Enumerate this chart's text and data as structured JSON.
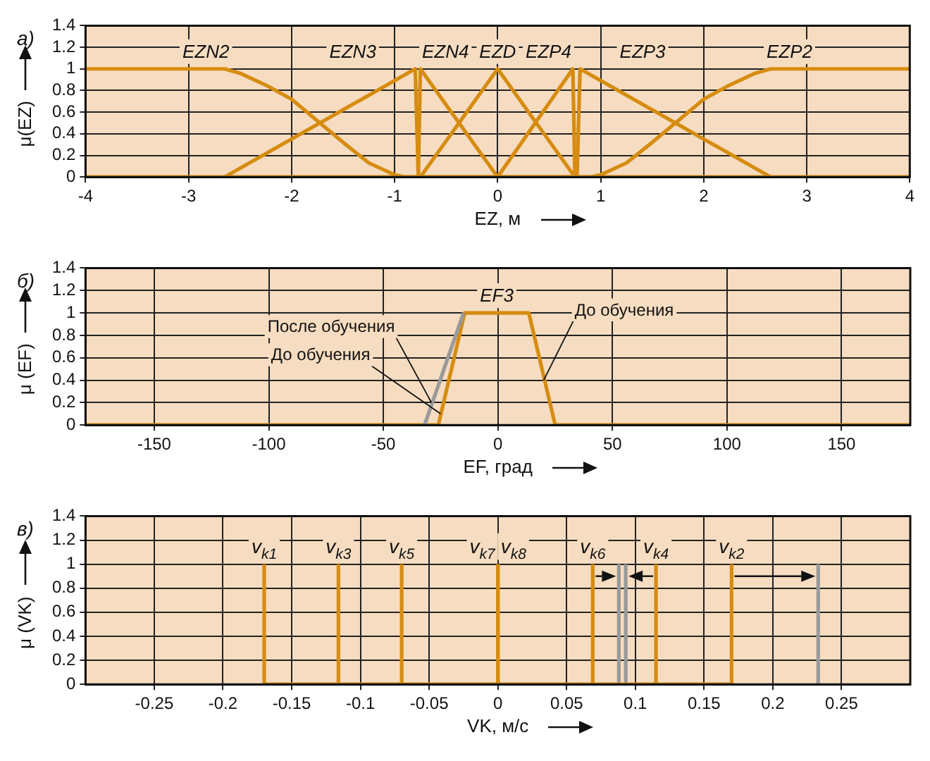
{
  "chart_data": [
    {
      "type": "line",
      "title": "а)",
      "xlabel": "EZ, м",
      "ylabel": "μ(EZ)",
      "xlim": [
        -4,
        4
      ],
      "xticks": [
        -4,
        -3,
        -2,
        -1,
        0,
        1,
        2,
        3,
        4
      ],
      "ylim": [
        0,
        1.4
      ],
      "yticks": [
        0,
        0.2,
        0.4,
        0.6,
        0.8,
        1,
        1.2,
        1.4
      ],
      "grid": true,
      "series": [
        {
          "name": "EZN2",
          "color": "#d68c10",
          "x": [
            -4,
            -2.65,
            -2.5,
            -2.25,
            -2,
            -1.75,
            -1.5,
            -1.25,
            -1,
            -0.9,
            4
          ],
          "values": [
            1,
            1,
            0.96,
            0.85,
            0.72,
            0.52,
            0.32,
            0.13,
            0.02,
            0,
            0
          ]
        },
        {
          "name": "EZN3",
          "color": "#d68c10",
          "x": [
            -2.65,
            -0.8,
            -0.77
          ],
          "values": [
            0,
            1,
            0
          ]
        },
        {
          "name": "EZN4",
          "color": "#d68c10",
          "x": [
            -0.77,
            -0.75,
            0
          ],
          "values": [
            0,
            1,
            0
          ]
        },
        {
          "name": "EZD",
          "color": "#d68c10",
          "x": [
            -0.75,
            0,
            0.75
          ],
          "values": [
            0,
            1,
            0
          ]
        },
        {
          "name": "EZP4",
          "color": "#d68c10",
          "x": [
            0,
            0.73,
            0.75
          ],
          "values": [
            0,
            1,
            0
          ]
        },
        {
          "name": "EZP3",
          "color": "#d68c10",
          "x": [
            0.77,
            0.8,
            2.65
          ],
          "values": [
            0,
            1,
            0
          ]
        },
        {
          "name": "EZP2",
          "color": "#d68c10",
          "x": [
            -4,
            0.9,
            1,
            1.25,
            1.5,
            1.75,
            2,
            2.25,
            2.5,
            2.65,
            4
          ],
          "values": [
            0,
            0,
            0.02,
            0.13,
            0.32,
            0.52,
            0.72,
            0.85,
            0.96,
            1,
            1
          ]
        }
      ]
    },
    {
      "type": "line",
      "title": "б)",
      "xlabel": "EF, град",
      "ylabel": "μ (EF)",
      "xlim": [
        -180,
        180
      ],
      "xticks": [
        -150,
        -100,
        -50,
        0,
        50,
        100,
        150
      ],
      "ylim": [
        0,
        1.4
      ],
      "yticks": [
        0,
        0.2,
        0.4,
        0.6,
        0.8,
        1,
        1.2,
        1.4
      ],
      "grid": true,
      "series": [
        {
          "color": "#9a9a9a",
          "x": [
            -32,
            -15
          ],
          "values": [
            0,
            1
          ]
        },
        {
          "name": "EF3",
          "color": "#d68c10",
          "x": [
            -180,
            -26,
            -14.5,
            13.5,
            25,
            180
          ],
          "values": [
            0,
            0,
            1,
            1,
            0,
            0
          ]
        }
      ],
      "annotations": [
        {
          "text": "После обучения",
          "x": -29,
          "y": 0.2
        },
        {
          "text": "До обучения",
          "x": -25,
          "y": 0.1
        },
        {
          "text": "До обучения",
          "x": 20,
          "y": 0.4
        }
      ]
    },
    {
      "type": "line",
      "title": "в)",
      "xlabel": "VK, м/с",
      "ylabel": "μ (VK)",
      "xlim": [
        -0.3,
        0.3
      ],
      "xticks": [
        -0.25,
        -0.2,
        -0.15,
        -0.1,
        -0.05,
        0,
        0.05,
        0.1,
        0.15,
        0.2,
        0.25
      ],
      "ylim": [
        0,
        1.4
      ],
      "yticks": [
        0,
        0.2,
        0.4,
        0.6,
        0.8,
        1,
        1.2,
        1.4
      ],
      "grid": true,
      "series": [
        {
          "color": "#d68c10",
          "x": [
            -0.17,
            0.17
          ],
          "values": [
            0,
            0
          ]
        },
        {
          "color": "#9a9a9a",
          "x": [
            0.088,
            0.088
          ],
          "values": [
            0,
            1
          ]
        },
        {
          "color": "#9a9a9a",
          "x": [
            0.093,
            0.093
          ],
          "values": [
            0,
            1
          ]
        },
        {
          "color": "#9a9a9a",
          "x": [
            0.233,
            0.233
          ],
          "values": [
            0,
            1
          ]
        },
        {
          "name": "v$_{k1}$",
          "color": "#d68c10",
          "x": [
            -0.17,
            -0.17
          ],
          "values": [
            0,
            1
          ]
        },
        {
          "name": "v$_{k3}$",
          "color": "#d68c10",
          "x": [
            -0.116,
            -0.116
          ],
          "values": [
            0,
            1
          ]
        },
        {
          "name": "v$_{k5}$",
          "color": "#d68c10",
          "x": [
            -0.07,
            -0.07
          ],
          "values": [
            0,
            1
          ]
        },
        {
          "name": "v$_{k7}$",
          "color": "#d68c10",
          "x": [
            0,
            0
          ],
          "values": [
            0,
            1
          ]
        },
        {
          "name": "v$_{k8}$",
          "color": "#d68c10",
          "x": [
            0,
            0
          ],
          "values": [
            0,
            1
          ]
        },
        {
          "name": "v$_{k6}$",
          "color": "#d68c10",
          "x": [
            0.069,
            0.069
          ],
          "values": [
            0,
            1
          ]
        },
        {
          "name": "v$_{k4}$",
          "color": "#d68c10",
          "x": [
            0.115,
            0.115
          ],
          "values": [
            0,
            1
          ]
        },
        {
          "name": "v$_{k2}$",
          "color": "#d68c10",
          "x": [
            0.17,
            0.17
          ],
          "values": [
            0,
            1
          ]
        }
      ]
    }
  ]
}
